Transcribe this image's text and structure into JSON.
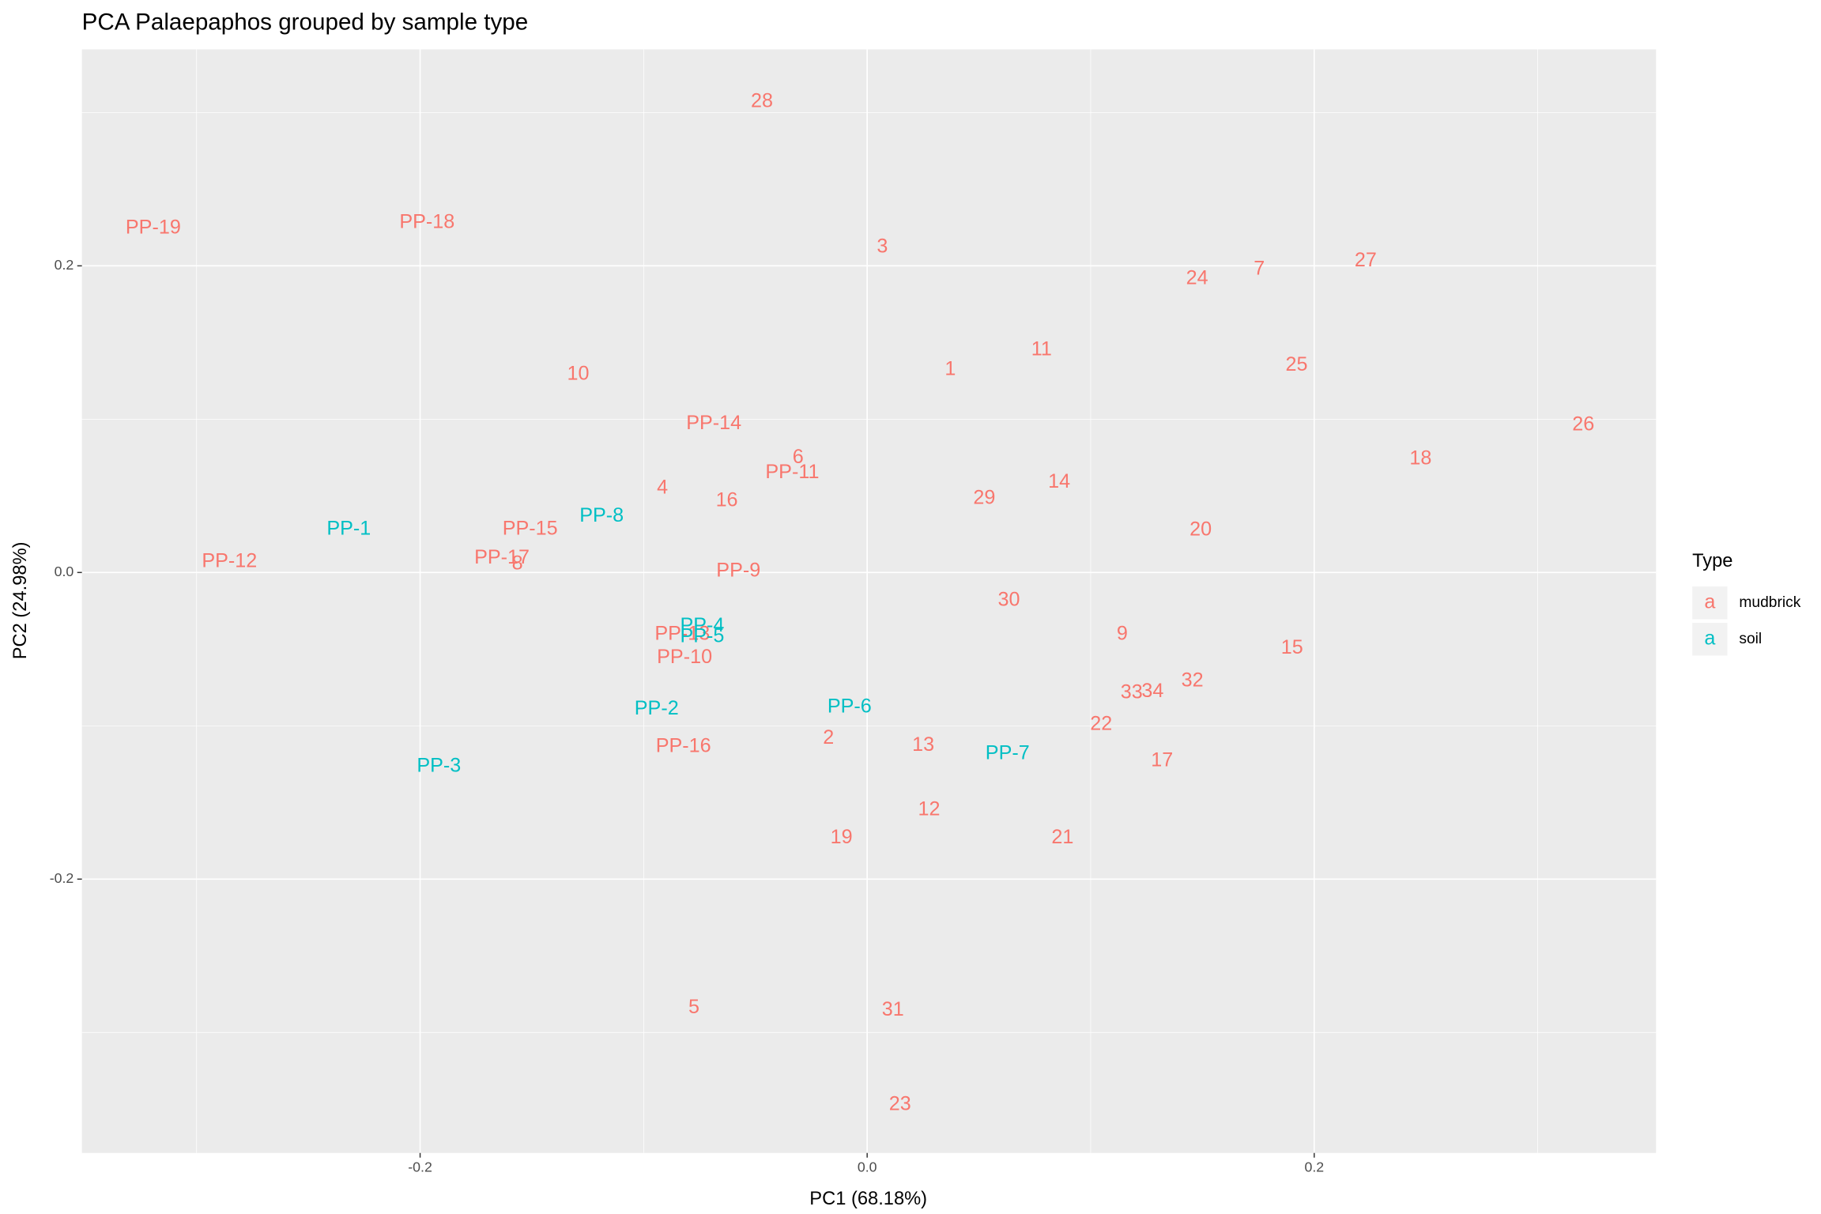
{
  "chart_data": {
    "type": "scatter",
    "title": "PCA Palaepaphos grouped by sample type",
    "x_label": "PC1 (68.18%)",
    "y_label": "PC2 (24.98%)",
    "legend_title": "Type",
    "legend_key": "a",
    "legend_position": "right",
    "grid": true,
    "xlim": [
      -0.3513,
      0.3529
    ],
    "ylim": [
      -0.3786,
      0.3412
    ],
    "xticks": [
      -0.2,
      {
        "value": 0,
        "label": "0.0"
      },
      0.2
    ],
    "yticks": [
      -0.2,
      {
        "value": 0,
        "label": "0.0"
      },
      0.2
    ],
    "minor_grid": [
      -0.3,
      -0.1,
      0.1,
      0.3
    ],
    "series": [
      {
        "name": "mudbrick",
        "color": "#F8766D",
        "labels": [
          "28",
          "PP-19",
          "PP-18",
          "3",
          "24",
          "7",
          "27",
          "11",
          "25",
          "1",
          "10",
          "PP-14",
          "26",
          "6",
          "18",
          "PP-11",
          "14",
          "4",
          "29",
          "16",
          "PP-15",
          "20",
          "PP-12",
          "PP-17",
          "8",
          "PP-9",
          "30",
          "9",
          "PP-13",
          "15",
          "PP-10",
          "32",
          "33",
          "34",
          "22",
          "2",
          "13",
          "PP-16",
          "17",
          "12",
          "19",
          "21",
          "5",
          "31",
          "23"
        ],
        "x": [
          -0.0471,
          -0.3194,
          -0.1969,
          0.0068,
          0.1476,
          0.1754,
          0.223,
          0.078,
          0.1921,
          0.0372,
          -0.1293,
          -0.0686,
          0.3204,
          -0.0309,
          0.2476,
          -0.0335,
          0.0859,
          -0.0916,
          0.0524,
          -0.0628,
          -0.1508,
          0.1492,
          -0.2853,
          -0.1634,
          -0.1565,
          -0.0576,
          0.0634,
          0.1141,
          -0.0827,
          0.1901,
          -0.0817,
          0.1455,
          0.1183,
          0.1277,
          0.1047,
          -0.0173,
          0.0251,
          -0.0822,
          0.1319,
          0.0277,
          -0.0115,
          0.0874,
          -0.0775,
          0.0115,
          0.0147
        ],
        "values": [
          0.3069,
          0.2244,
          0.2282,
          0.2122,
          0.1916,
          0.1977,
          0.2031,
          0.145,
          0.1351,
          0.1321,
          0.129,
          0.0969,
          0.0962,
          0.0748,
          0.074,
          0.0649,
          0.0588,
          0.055,
          0.0481,
          0.0466,
          0.0282,
          0.0275,
          0.0069,
          0.0092,
          0.0053,
          0.0008,
          -0.0183,
          -0.0405,
          -0.0405,
          -0.0496,
          -0.0557,
          -0.071,
          -0.0786,
          -0.0779,
          -0.0992,
          -0.1084,
          -0.113,
          -0.1137,
          -0.1229,
          -0.155,
          -0.1733,
          -0.1733,
          -0.284,
          -0.2855,
          -0.3473
        ]
      },
      {
        "name": "soil",
        "color": "#00BFC4",
        "labels": [
          "PP-1",
          "PP-8",
          "PP-4",
          "PP-5",
          "PP-2",
          "PP-6",
          "PP-3",
          "PP-7"
        ],
        "x": [
          -0.2319,
          -0.1188,
          -0.0738,
          -0.0738,
          -0.0942,
          -0.0079,
          -0.1916,
          0.0628
        ],
        "values": [
          0.0282,
          0.0366,
          -0.0351,
          -0.042,
          -0.0893,
          -0.0878,
          -0.1267,
          -0.1183
        ]
      }
    ]
  }
}
